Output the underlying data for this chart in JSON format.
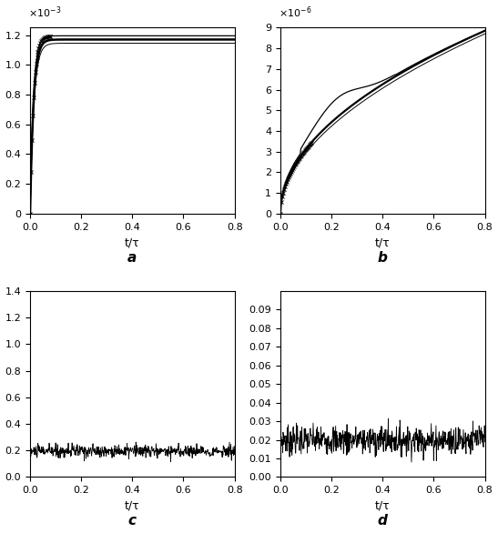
{
  "fig_width": 5.47,
  "fig_height": 5.86,
  "dpi": 100,
  "subplot_labels": [
    "a",
    "b",
    "c",
    "d"
  ],
  "plot_a": {
    "xlabel": "t/τ",
    "ylim": [
      0,
      0.00125
    ],
    "xlim": [
      0,
      0.8
    ],
    "yticks": [
      0,
      0.0002,
      0.0004,
      0.0006,
      0.0008,
      0.001,
      0.0012
    ],
    "xticks": [
      0,
      0.2,
      0.4,
      0.6,
      0.8
    ],
    "n_points": 400,
    "n_sparse": 25,
    "curve1_plateau": 0.001195,
    "curve2_plateau": 0.00117,
    "curve3_plateau": 0.001145,
    "rise_rate": 80
  },
  "plot_b": {
    "xlabel": "t/τ",
    "ylim": [
      0,
      9e-06
    ],
    "xlim": [
      0,
      0.8
    ],
    "yticks": [
      0,
      1e-06,
      2e-06,
      3e-06,
      4e-06,
      5e-06,
      6e-06,
      7e-06,
      8e-06,
      9e-06
    ],
    "xticks": [
      0,
      0.2,
      0.4,
      0.6,
      0.8
    ],
    "n_points": 400,
    "n_sparse": 35
  },
  "plot_c": {
    "xlabel": "t/τ",
    "ylim": [
      0,
      1.4
    ],
    "xlim": [
      0,
      0.8
    ],
    "yticks": [
      0,
      0.2,
      0.4,
      0.6,
      0.8,
      1.0,
      1.2,
      1.4
    ],
    "xticks": [
      0,
      0.2,
      0.4,
      0.6,
      0.8
    ],
    "noise_mean": 0.195,
    "noise_std": 0.025,
    "n_points": 600
  },
  "plot_d": {
    "xlabel": "t/τ",
    "ylim": [
      0,
      0.1
    ],
    "xlim": [
      0,
      0.8
    ],
    "yticks": [
      0,
      0.01,
      0.02,
      0.03,
      0.04,
      0.05,
      0.06,
      0.07,
      0.08,
      0.09
    ],
    "xticks": [
      0,
      0.2,
      0.4,
      0.6,
      0.8
    ],
    "noise_mean": 0.02,
    "noise_std": 0.004,
    "n_points": 600
  },
  "line_color": "#000000",
  "bg_color": "#ffffff",
  "label_fontsize": 9,
  "tick_fontsize": 8,
  "sublabel_fontsize": 11
}
